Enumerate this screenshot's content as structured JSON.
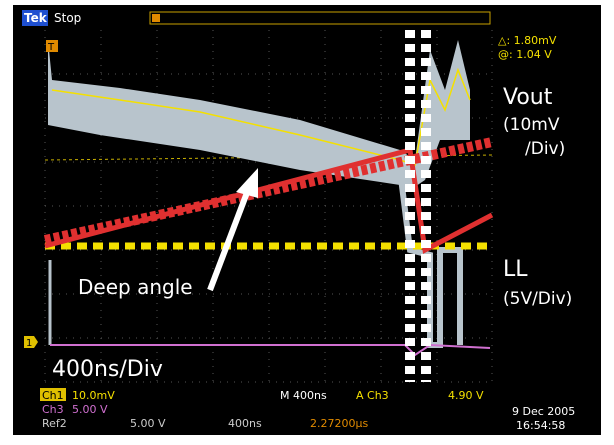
{
  "header": {
    "brand": "Tek",
    "status": "Stop"
  },
  "cursor": {
    "delta": "△:  1.80mV",
    "at": "@:  1.04 V"
  },
  "markers": {
    "trigger": "T",
    "channel": "1"
  },
  "annotations": {
    "vout": "Vout",
    "vout_scale_1": "(10mV",
    "vout_scale_2": "/Div)",
    "ll": "LL",
    "ll_scale": "(5V/Div)",
    "angle": "Deep angle",
    "timebase": "400ns/Div"
  },
  "status_bar": {
    "ch1": "Ch1",
    "ch1_scale": "10.0mV",
    "ch3": "Ch3",
    "ch3_scale": "5.00 V",
    "ref2": "Ref2",
    "ref2_scale": "5.00 V",
    "ref2_time": "400ns",
    "ref2_pos": "2.27200µs",
    "horizontal": "M 400ns",
    "trigger_source": "A  Ch3",
    "trigger_level": "4.90 V",
    "date": "9 Dec 2005",
    "time": "16:54:58"
  }
}
